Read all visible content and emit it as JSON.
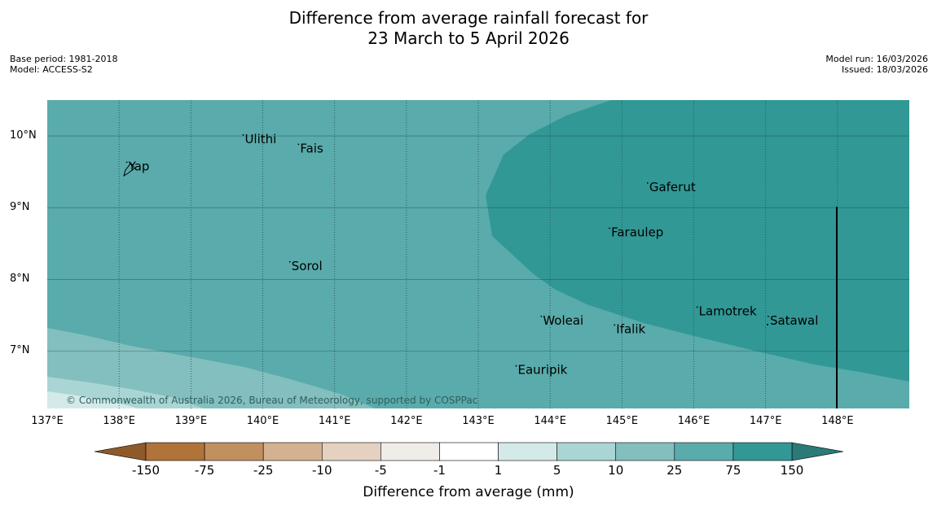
{
  "title": {
    "line1": "Difference from average rainfall forecast for",
    "line2": "23 March to 5 April 2026"
  },
  "meta_left": {
    "base_period": "Base period: 1981-2018",
    "model": "Model: ACCESS-S2"
  },
  "meta_right": {
    "model_run": "Model run: 16/03/2026",
    "issued": "Issued: 18/03/2026"
  },
  "map": {
    "lon_range": [
      137,
      149
    ],
    "lat_range": [
      6.2,
      10.5
    ],
    "lat_labels": [
      "10°N",
      "9°N",
      "8°N",
      "7°N"
    ],
    "lon_labels": [
      "137°E",
      "138°E",
      "139°E",
      "140°E",
      "141°E",
      "142°E",
      "143°E",
      "144°E",
      "145°E",
      "146°E",
      "147°E",
      "148°E"
    ],
    "places": [
      {
        "name": "Ulithi",
        "lon": 139.75,
        "lat": 9.9
      },
      {
        "name": "Fais",
        "lon": 140.52,
        "lat": 9.77
      },
      {
        "name": "Yap",
        "lon": 138.13,
        "lat": 9.52
      },
      {
        "name": "Gaferut",
        "lon": 145.38,
        "lat": 9.23
      },
      {
        "name": "Faraulep",
        "lon": 144.85,
        "lat": 8.6
      },
      {
        "name": "Sorol",
        "lon": 140.4,
        "lat": 8.13
      },
      {
        "name": "Lamotrek",
        "lon": 146.07,
        "lat": 7.5
      },
      {
        "name": "Woleai",
        "lon": 143.9,
        "lat": 7.37
      },
      {
        "name": "Ifalik",
        "lon": 144.92,
        "lat": 7.25
      },
      {
        "name": "Satawal",
        "lon": 147.06,
        "lat": 7.37
      },
      {
        "name": "Eauripik",
        "lon": 143.55,
        "lat": 6.68
      }
    ],
    "copyright": "© Commonwealth of Australia 2026, Bureau of Meteorology, supported by COSPPac"
  },
  "colorbar": {
    "ticks": [
      "-150",
      "-75",
      "-25",
      "-10",
      "-5",
      "-1",
      "1",
      "5",
      "10",
      "25",
      "75",
      "150"
    ],
    "colors": [
      "#b07339",
      "#c1905f",
      "#d4b28f",
      "#e4d1c0",
      "#f0ece7",
      "#ffffff",
      "#d4eae9",
      "#a9d5d4",
      "#82bfbe",
      "#5aabab",
      "#319896"
    ],
    "under_color": "#8f5a2a",
    "over_color": "#2a7a78",
    "title": "Difference from average (mm)"
  },
  "colors": {
    "base": "#5aabab",
    "high": "#319896",
    "low1": "#82bfbe",
    "low2": "#a9d5d4",
    "low3": "#d4eae9",
    "grid": "#1f4e4d",
    "land": "#000000"
  }
}
